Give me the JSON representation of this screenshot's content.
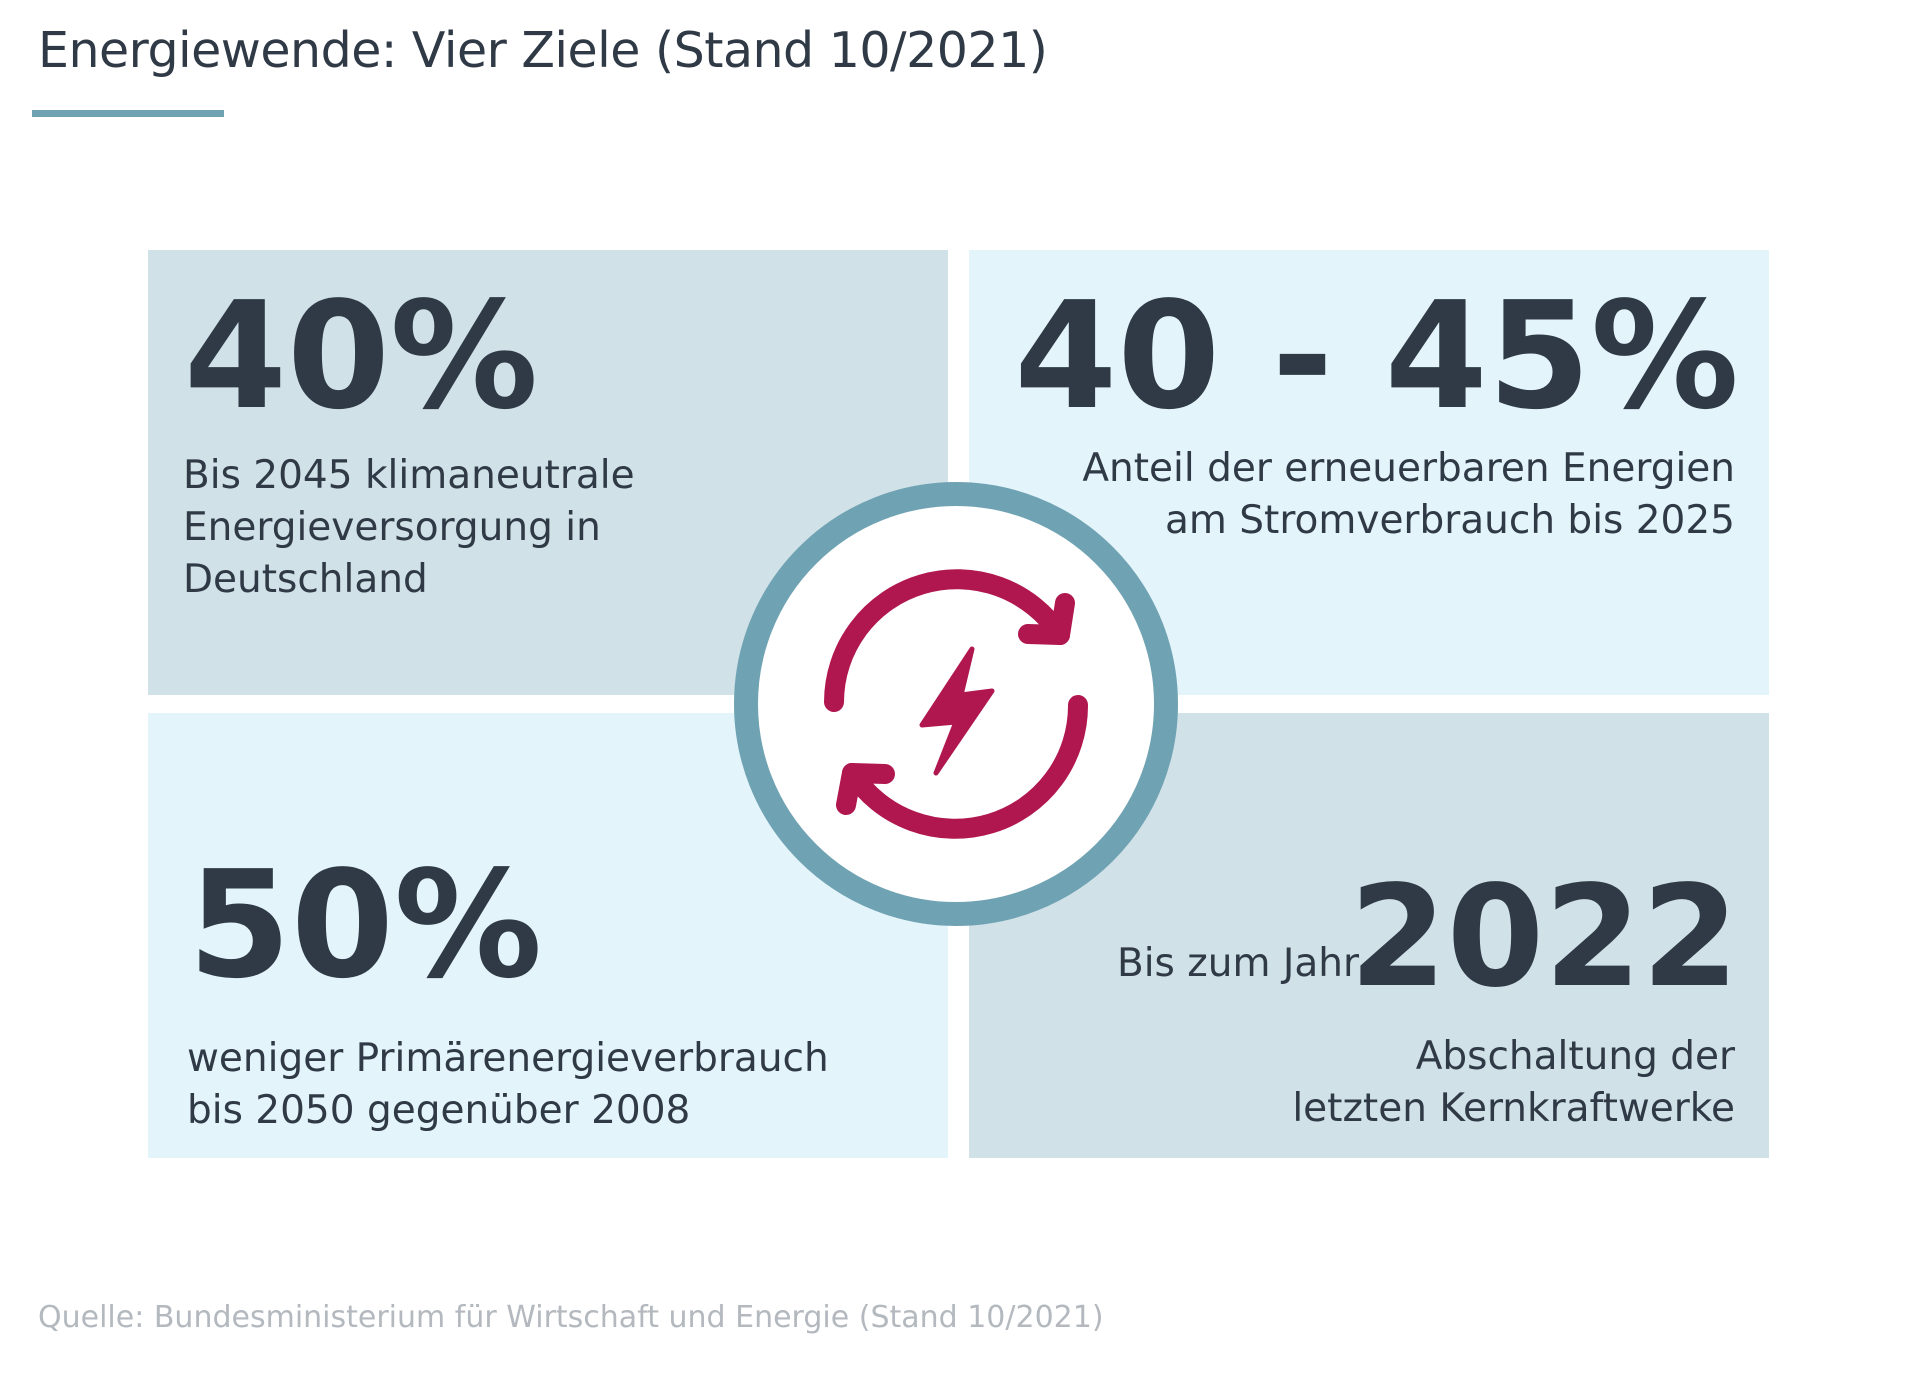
{
  "header": {
    "title": "Energiewende: Vier Ziele (Stand 10/2021)"
  },
  "goals": [
    {
      "value": "40%",
      "text_lines": [
        "Bis 2045 klimaneutrale",
        "Energieversorgung in",
        "Deutschland"
      ]
    },
    {
      "value": "40 - 45%",
      "text_lines": [
        "Anteil der erneuerbaren Energien",
        "am Stromverbrauch bis 2025"
      ]
    },
    {
      "value": "50%",
      "text_lines": [
        "weniger Primärenergieverbrauch",
        "bis 2050 gegenüber 2008"
      ]
    },
    {
      "label": "Bis zum Jahr",
      "value": "2022",
      "text_lines": [
        "Abschaltung der",
        "letzten Kernkraftwerke"
      ]
    }
  ],
  "center_icon": {
    "name": "energy-cycle-lightning-icon"
  },
  "footer": {
    "source": "Quelle: Bundesministerium für Wirtschaft und Energie (Stand 10/2021)"
  },
  "colors": {
    "text": "#2f3a46",
    "accent_teal": "#6fa3b4",
    "panel_dark": "#d0e1e7",
    "panel_light": "#e3f4fb",
    "icon_magenta": "#b0174f",
    "source_gray": "#b3b9bf"
  }
}
